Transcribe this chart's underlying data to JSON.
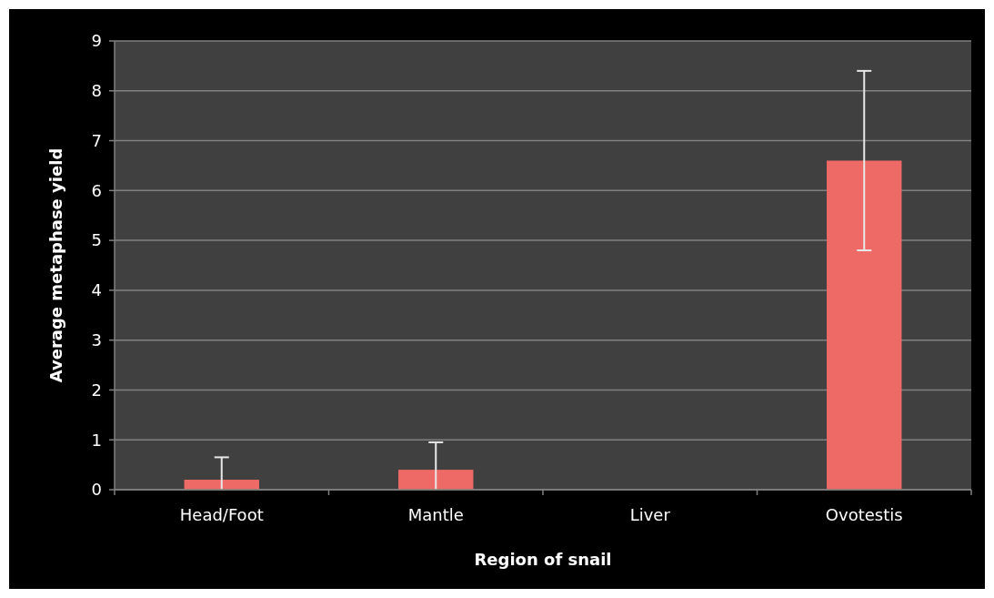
{
  "chart_data": {
    "type": "bar",
    "xlabel": "Region of snail",
    "ylabel": "Average metaphase yield",
    "categories": [
      "Head/Foot",
      "Mantle",
      "Liver",
      "Ovotestis"
    ],
    "values": [
      0.2,
      0.4,
      0,
      6.6
    ],
    "errors": [
      [
        0,
        0.65
      ],
      [
        0,
        0.95
      ],
      null,
      [
        4.8,
        8.4
      ]
    ],
    "color": "#ee6a66",
    "ylim": [
      0,
      9
    ],
    "yticks": [
      0,
      1,
      2,
      3,
      4,
      5,
      6,
      7,
      8,
      9
    ],
    "grid": "y"
  }
}
